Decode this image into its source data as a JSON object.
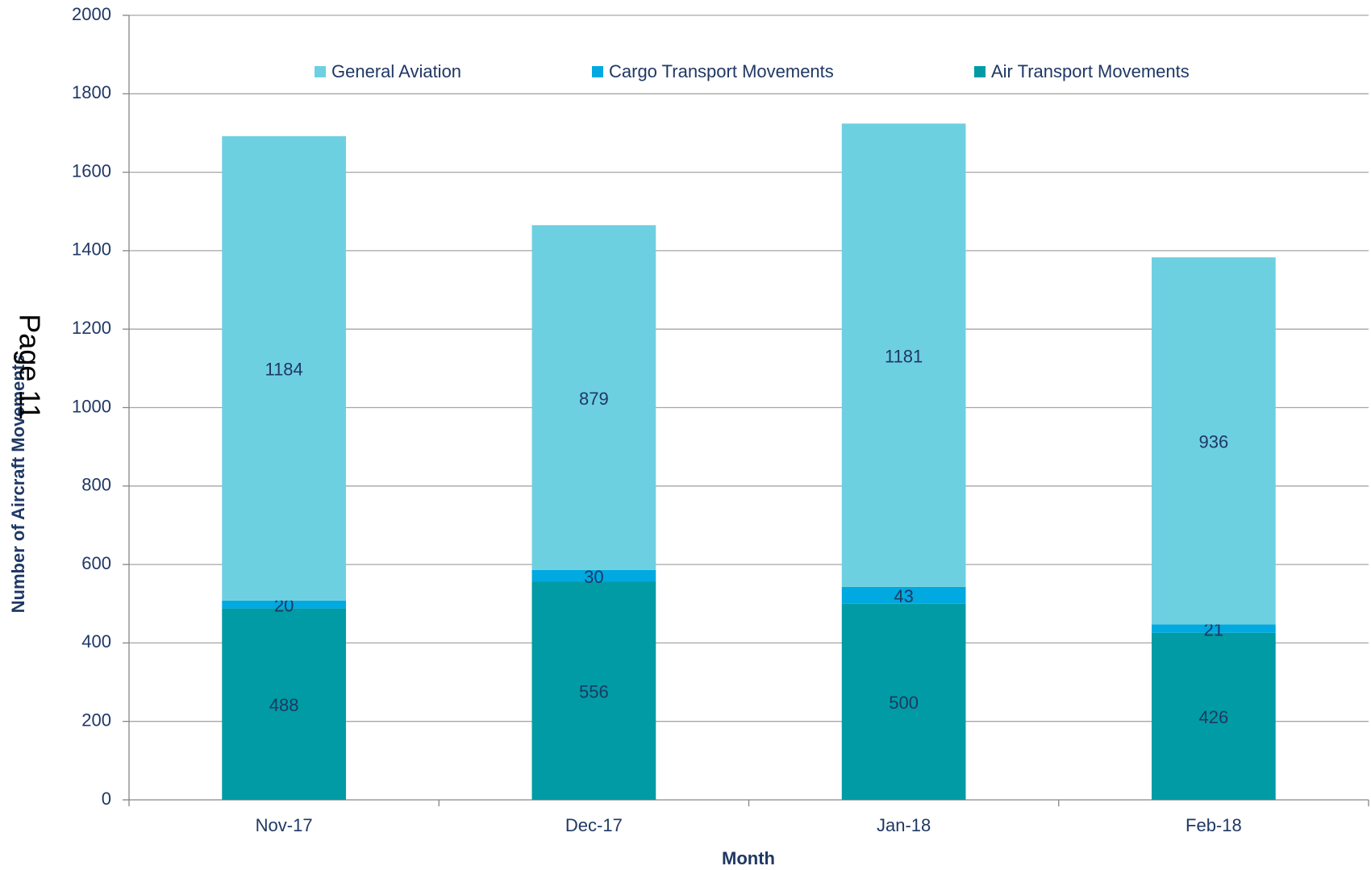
{
  "chart_data": {
    "type": "bar",
    "stacked": true,
    "y_axis_label": "Number of Aircraft Movements",
    "x_axis_label": "Month",
    "page_label": "Page 11",
    "categories": [
      "Nov-17",
      "Dec-17",
      "Jan-18",
      "Feb-18"
    ],
    "series": [
      {
        "name": "General Aviation",
        "color": "#6dd0e1",
        "values": [
          1184,
          879,
          1181,
          936
        ]
      },
      {
        "name": "Cargo Transport Movements",
        "color": "#00a9e0",
        "values": [
          20,
          30,
          43,
          21
        ]
      },
      {
        "name": "Air Transport Movements",
        "color": "#009ba4",
        "values": [
          488,
          556,
          500,
          426
        ]
      }
    ],
    "ylim": [
      0,
      2000
    ],
    "yticks": [
      0,
      200,
      400,
      600,
      800,
      1000,
      1200,
      1400,
      1600,
      1800,
      2000
    ],
    "grid": true,
    "legend": "top"
  }
}
